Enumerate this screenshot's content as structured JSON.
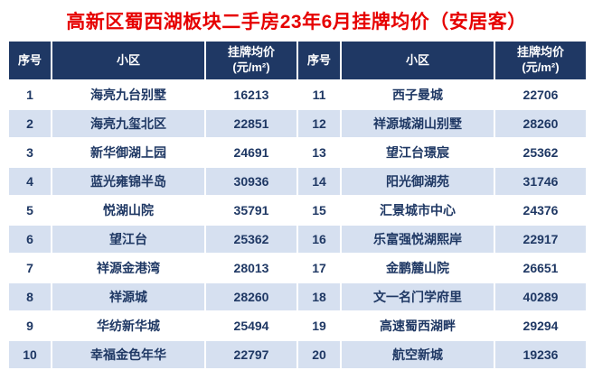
{
  "header": {
    "index": "序号",
    "community": "小区",
    "price_line1": "挂牌均价",
    "price_line2": "(元/m²)"
  },
  "chart_data": {
    "type": "table",
    "title": "高新区蜀西湖板块二手房23年6月挂牌均价（安居客）",
    "columns": [
      "序号",
      "小区",
      "挂牌均价(元/m²)",
      "序号",
      "小区",
      "挂牌均价(元/m²)"
    ],
    "rows": [
      [
        "1",
        "海亮九台别墅",
        "16213",
        "11",
        "西子曼城",
        "22706"
      ],
      [
        "2",
        "海亮九玺北区",
        "22851",
        "12",
        "祥源城湖山别墅",
        "28260"
      ],
      [
        "3",
        "新华御湖上园",
        "24691",
        "13",
        "望江台璟宸",
        "25362"
      ],
      [
        "4",
        "蓝光雍锦半岛",
        "30936",
        "14",
        "阳光御湖苑",
        "31746"
      ],
      [
        "5",
        "悦湖山院",
        "35791",
        "15",
        "汇景城市中心",
        "24376"
      ],
      [
        "6",
        "望江台",
        "25362",
        "16",
        "乐富强悦湖熙岸",
        "22917"
      ],
      [
        "7",
        "祥源金港湾",
        "28013",
        "17",
        "金鹏麓山院",
        "26651"
      ],
      [
        "8",
        "祥源城",
        "28260",
        "18",
        "文一名门学府里",
        "40289"
      ],
      [
        "9",
        "华纺新华城",
        "25494",
        "19",
        "高速蜀西湖畔",
        "29294"
      ],
      [
        "10",
        "幸福金色年华",
        "22797",
        "20",
        "航空新城",
        "19236"
      ]
    ]
  },
  "colors": {
    "title_text": "#e60000",
    "header_bg": "#1f3864",
    "body_text": "#1f3864",
    "alt_row_bg": "#d6e0f0",
    "grid": "#ffffff"
  }
}
